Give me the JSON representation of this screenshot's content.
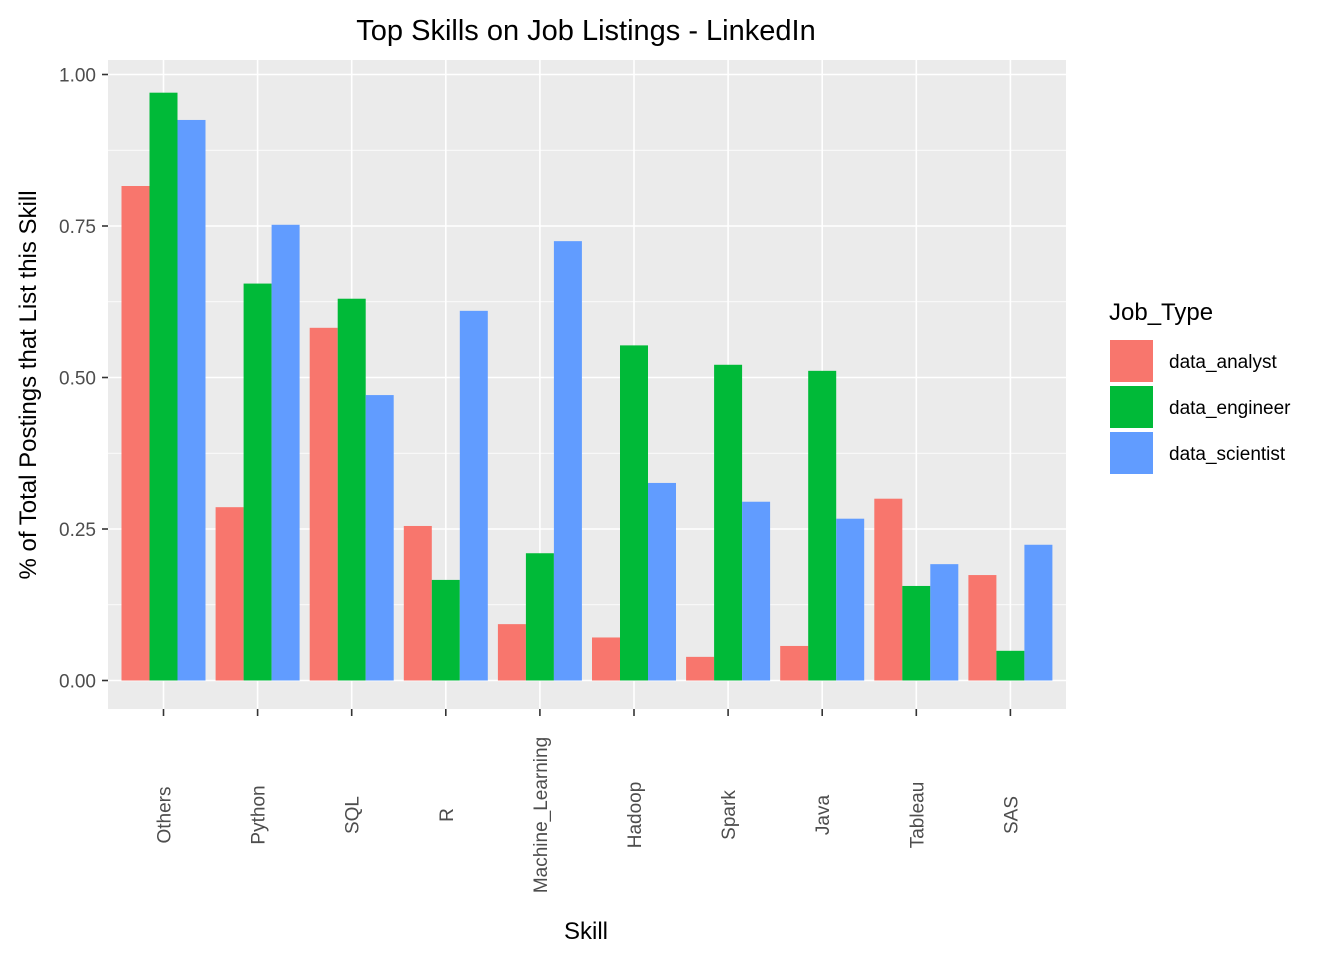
{
  "chart_data": {
    "type": "bar",
    "title": "Top Skills on Job Listings - LinkedIn",
    "xlabel": "Skill",
    "ylabel": "% of Total Postings that List this Skill",
    "categories": [
      "Others",
      "Python",
      "SQL",
      "R",
      "Machine_Learning",
      "Hadoop",
      "Spark",
      "Java",
      "Tableau",
      "SAS"
    ],
    "series": [
      {
        "name": "data_analyst",
        "color": "#F8766D",
        "values": [
          0.816,
          0.286,
          0.582,
          0.255,
          0.093,
          0.071,
          0.039,
          0.057,
          0.3,
          0.174
        ]
      },
      {
        "name": "data_engineer",
        "color": "#00BA38",
        "values": [
          0.97,
          0.655,
          0.63,
          0.166,
          0.21,
          0.553,
          0.521,
          0.511,
          0.156,
          0.049
        ]
      },
      {
        "name": "data_scientist",
        "color": "#619CFF",
        "values": [
          0.925,
          0.752,
          0.471,
          0.61,
          0.725,
          0.326,
          0.295,
          0.267,
          0.192,
          0.224
        ]
      }
    ],
    "ylim": [
      0,
      1.05
    ],
    "yticks": [
      "0.00",
      "0.25",
      "0.50",
      "0.75",
      "1.00"
    ],
    "ytick_values": [
      0,
      0.25,
      0.5,
      0.75,
      1.0
    ],
    "legend": {
      "title": "Job_Type",
      "placement": "right"
    },
    "grid": true,
    "panel_background": "#EBEBEB"
  }
}
